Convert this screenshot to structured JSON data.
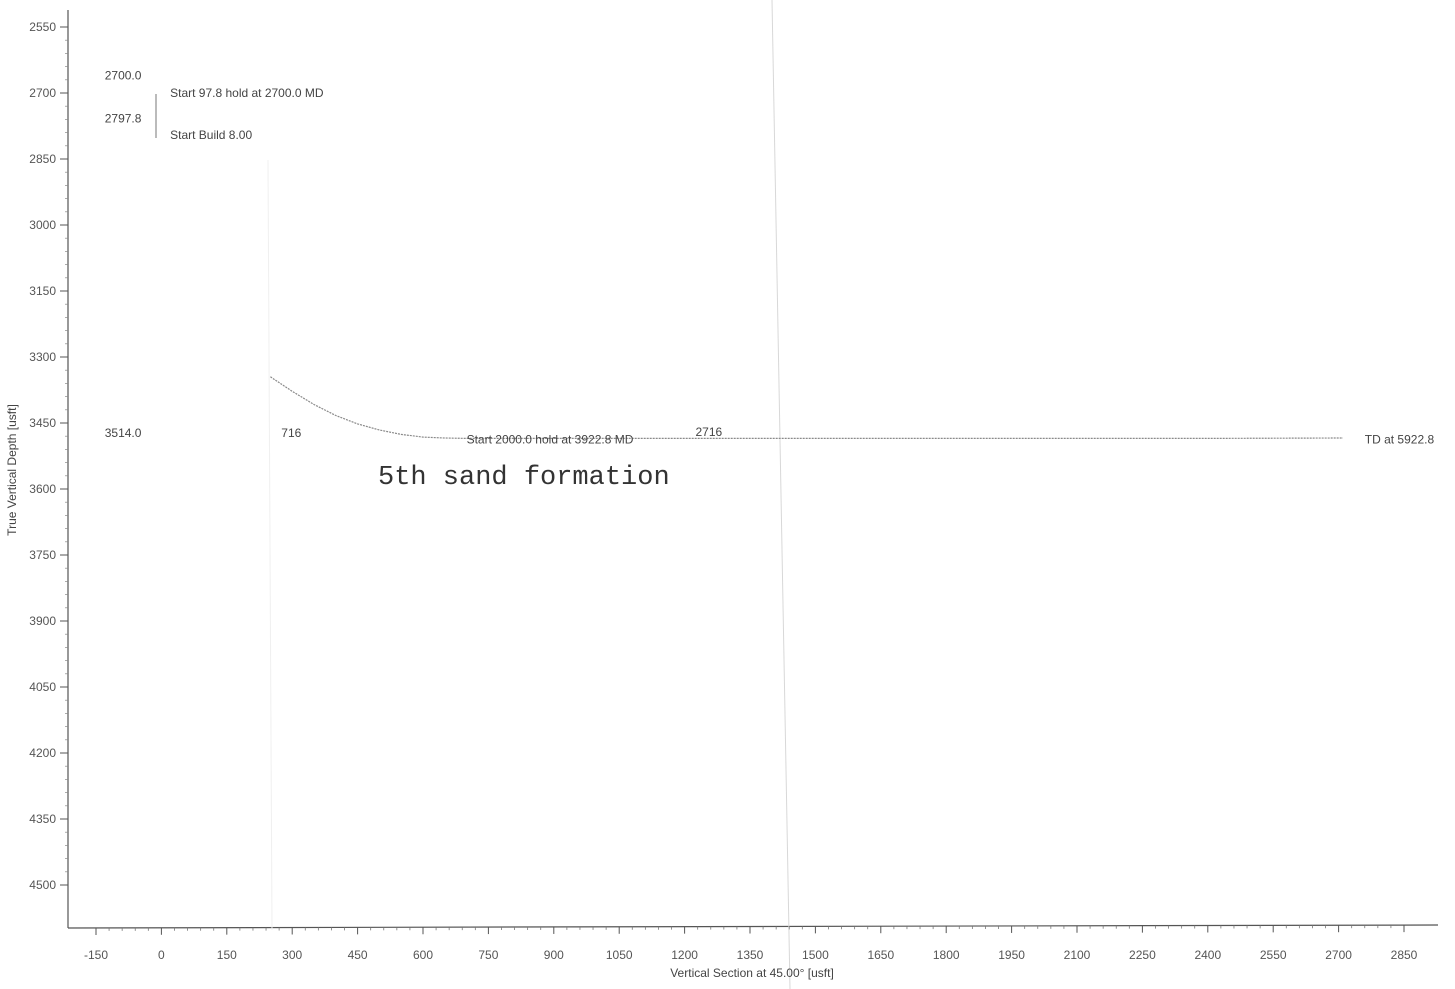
{
  "chart_data": {
    "type": "line",
    "xlabel": "Vertical Section at 45.00° [usft]",
    "ylabel": "True Vertical Depth [usft]",
    "xlim": [
      -210,
      2900
    ],
    "ylim": [
      2500,
      4600
    ],
    "y_inverted": true,
    "grid": false,
    "x_ticks": [
      -150,
      0,
      150,
      300,
      450,
      600,
      750,
      900,
      1050,
      1200,
      1350,
      1500,
      1650,
      1800,
      1950,
      2100,
      2250,
      2400,
      2550,
      2700,
      2850
    ],
    "y_ticks": [
      2550,
      2700,
      2850,
      3000,
      3150,
      3300,
      3450,
      3600,
      3750,
      3900,
      4050,
      4200,
      4350,
      4500
    ],
    "series": [
      {
        "x": [
          250,
          300,
          350,
          400,
          450,
          500,
          550,
          600,
          650,
          700,
          1200,
          1800,
          2400,
          2710
        ],
        "y": [
          3345,
          3378,
          3408,
          3433,
          3452,
          3466,
          3476,
          3482,
          3484,
          3485,
          3485,
          3485,
          3485,
          3484
        ]
      }
    ],
    "annotations": [
      {
        "text": "2700.0",
        "x": -130,
        "y": 2660
      },
      {
        "text": "Start 97.8 hold at 2700.0 MD",
        "x": 20,
        "y": 2700
      },
      {
        "text": "2797.8",
        "x": -130,
        "y": 2758
      },
      {
        "text": "Start Build 8.00",
        "x": 20,
        "y": 2796
      },
      {
        "text": "3514.0",
        "x": -130,
        "y": 3473
      },
      {
        "text": "716",
        "x": 275,
        "y": 3473
      },
      {
        "text": "2716",
        "x": 1225,
        "y": 3470
      },
      {
        "text": "Start 2000.0 hold at 3922.8 MD",
        "x": 700,
        "y": 3488
      },
      {
        "text": "TD at 5922.8",
        "x": 2760,
        "y": 3488
      }
    ],
    "formation_label": "5th sand formation"
  }
}
